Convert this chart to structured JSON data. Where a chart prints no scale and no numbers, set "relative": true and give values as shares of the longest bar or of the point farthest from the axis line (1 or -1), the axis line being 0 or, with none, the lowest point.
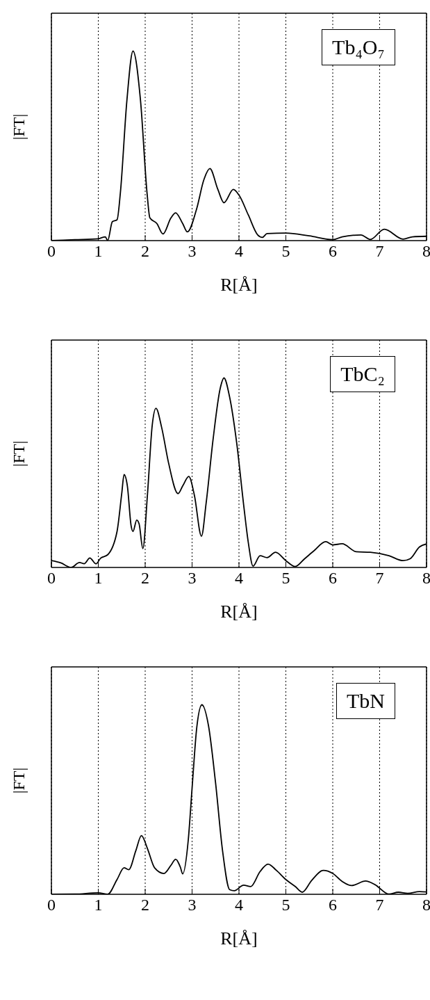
{
  "chart_data": [
    {
      "type": "line",
      "relative": true,
      "xlabel": "R[Å]",
      "ylabel": "|FT|",
      "xlim": [
        0,
        8
      ],
      "xticks": [
        0,
        1,
        2,
        3,
        4,
        5,
        6,
        7,
        8
      ],
      "grid": true,
      "legend": "top right",
      "line_style": "solid",
      "series": [
        {
          "name": "Tb₄O₇",
          "color": "#000000",
          "x": [
            0,
            0.5,
            1.0,
            1.15,
            1.2,
            1.3,
            1.4,
            1.47,
            1.61,
            1.74,
            1.9,
            2.04,
            2.1,
            2.25,
            2.38,
            2.55,
            2.65,
            2.8,
            2.9,
            3.1,
            3.25,
            3.38,
            3.55,
            3.68,
            3.88,
            4.0,
            4.2,
            4.4,
            4.5,
            4.6,
            5.0,
            5.5,
            6.0,
            6.2,
            6.6,
            6.8,
            7.1,
            7.5,
            7.7,
            8.0
          ],
          "values": [
            0.0,
            0.005,
            0.01,
            0.02,
            0.0,
            0.1,
            0.11,
            0.25,
            0.74,
            1.0,
            0.74,
            0.25,
            0.12,
            0.09,
            0.035,
            0.12,
            0.146,
            0.09,
            0.046,
            0.17,
            0.32,
            0.38,
            0.27,
            0.2,
            0.27,
            0.24,
            0.135,
            0.03,
            0.017,
            0.037,
            0.04,
            0.025,
            0.005,
            0.02,
            0.03,
            0.006,
            0.06,
            0.008,
            0.02,
            0.023
          ]
        }
      ]
    },
    {
      "type": "line",
      "relative": true,
      "xlabel": "R[Å]",
      "ylabel": "|FT|",
      "xlim": [
        0,
        8
      ],
      "xticks": [
        0,
        1,
        2,
        3,
        4,
        5,
        6,
        7,
        8
      ],
      "grid": true,
      "legend": "top right",
      "line_style": "solid",
      "series": [
        {
          "name": "TbC₂",
          "color": "#000000",
          "x": [
            0,
            0.2,
            0.42,
            0.6,
            0.7,
            0.82,
            0.95,
            1.05,
            1.2,
            1.4,
            1.5,
            1.55,
            1.62,
            1.7,
            1.74,
            1.82,
            1.87,
            1.95,
            2.05,
            2.15,
            2.23,
            2.35,
            2.5,
            2.7,
            2.8,
            2.93,
            3.05,
            3.2,
            3.3,
            3.45,
            3.6,
            3.68,
            3.8,
            3.95,
            4.1,
            4.2,
            4.3,
            4.45,
            4.6,
            4.78,
            5.0,
            5.2,
            5.4,
            5.6,
            5.85,
            6.0,
            6.2,
            6.5,
            6.8,
            7.2,
            7.5,
            7.65,
            7.85,
            8.0
          ],
          "values": [
            0.036,
            0.024,
            0.0,
            0.026,
            0.02,
            0.05,
            0.019,
            0.049,
            0.067,
            0.19,
            0.39,
            0.49,
            0.43,
            0.22,
            0.19,
            0.25,
            0.23,
            0.1,
            0.39,
            0.75,
            0.84,
            0.74,
            0.55,
            0.39,
            0.43,
            0.48,
            0.38,
            0.165,
            0.34,
            0.68,
            0.945,
            1.0,
            0.9,
            0.66,
            0.33,
            0.13,
            0.007,
            0.062,
            0.052,
            0.08,
            0.036,
            0.005,
            0.046,
            0.088,
            0.136,
            0.119,
            0.125,
            0.083,
            0.08,
            0.062,
            0.036,
            0.046,
            0.108,
            0.124
          ]
        }
      ]
    },
    {
      "type": "line",
      "relative": true,
      "xlabel": "R[Å]",
      "ylabel": "|FT|",
      "xlim": [
        0,
        8
      ],
      "xticks": [
        0,
        1,
        2,
        3,
        4,
        5,
        6,
        7,
        8
      ],
      "grid": true,
      "legend": "top right",
      "line_style": "solid",
      "series": [
        {
          "name": "TbN",
          "color": "#000000",
          "x": [
            0,
            0.5,
            1.0,
            1.2,
            1.4,
            1.55,
            1.65,
            1.8,
            1.92,
            2.05,
            2.2,
            2.4,
            2.55,
            2.65,
            2.75,
            2.8,
            2.92,
            3.0,
            3.1,
            3.21,
            3.35,
            3.5,
            3.65,
            3.8,
            3.9,
            4.1,
            4.25,
            4.45,
            4.62,
            4.8,
            5.0,
            5.2,
            5.35,
            5.55,
            5.8,
            6.0,
            6.2,
            6.4,
            6.7,
            6.9,
            7.2,
            7.4,
            7.6,
            7.85,
            8.0
          ],
          "values": [
            0.0,
            0.001,
            0.008,
            0.0,
            0.078,
            0.14,
            0.13,
            0.23,
            0.31,
            0.24,
            0.14,
            0.11,
            0.153,
            0.185,
            0.143,
            0.108,
            0.29,
            0.56,
            0.88,
            1.0,
            0.89,
            0.59,
            0.23,
            0.025,
            0.019,
            0.048,
            0.041,
            0.12,
            0.159,
            0.126,
            0.078,
            0.041,
            0.011,
            0.073,
            0.126,
            0.11,
            0.068,
            0.046,
            0.07,
            0.051,
            0.001,
            0.011,
            0.005,
            0.014,
            0.012
          ]
        }
      ]
    }
  ]
}
